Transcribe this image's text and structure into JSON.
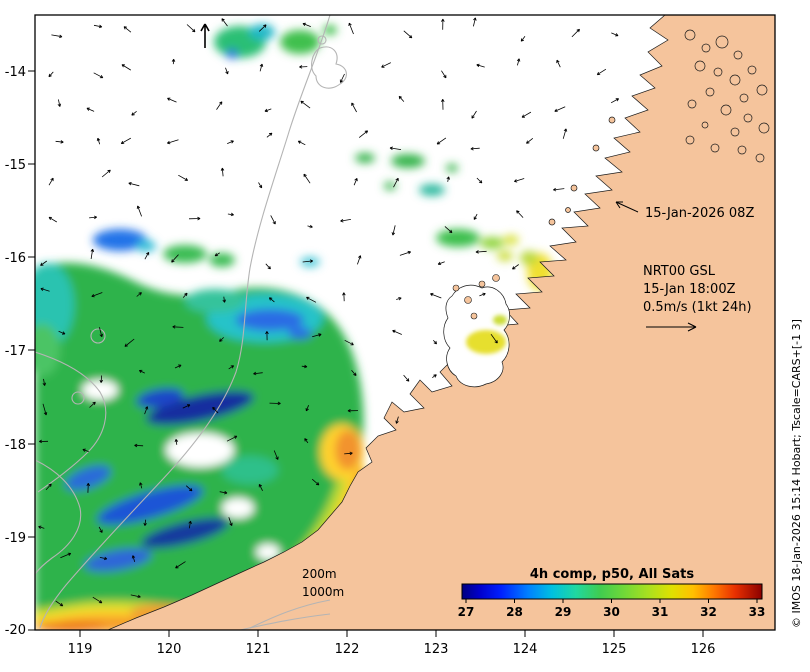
{
  "figure": {
    "obs_label": "15-Jan-2026 08Z",
    "model_name": "NRT00 GSL",
    "model_time": "15-Jan 18:00Z",
    "vector_scale_label": "0.5m/s (1kt 24h)",
    "contour_label_200": "200m",
    "contour_label_1000": "1000m",
    "credit": "© IMOS 18-Jan-2026 15:14 Hobart; Tscale=CARS+[-1 3]"
  },
  "axes": {
    "x_tick_labels": [
      "119",
      "120",
      "121",
      "122",
      "123",
      "124",
      "125",
      "126"
    ],
    "y_tick_labels": [
      "-14",
      "-15",
      "-16",
      "-17",
      "-18",
      "-19",
      "-20"
    ]
  },
  "colorbar": {
    "title": "4h comp, p50, All Sats",
    "title_color": "#00008b",
    "tick_labels": [
      "27",
      "28",
      "29",
      "30",
      "31",
      "32",
      "33"
    ],
    "gradient": [
      {
        "o": 0,
        "c": "#000080"
      },
      {
        "o": 0.06,
        "c": "#0000cd"
      },
      {
        "o": 0.13,
        "c": "#0020ff"
      },
      {
        "o": 0.22,
        "c": "#0080ff"
      },
      {
        "o": 0.3,
        "c": "#00c0e0"
      },
      {
        "o": 0.38,
        "c": "#20d8a0"
      },
      {
        "o": 0.46,
        "c": "#40cc50"
      },
      {
        "o": 0.54,
        "c": "#70d838"
      },
      {
        "o": 0.62,
        "c": "#a8e020"
      },
      {
        "o": 0.7,
        "c": "#e0e000"
      },
      {
        "o": 0.77,
        "c": "#ffc000"
      },
      {
        "o": 0.84,
        "c": "#ff7800"
      },
      {
        "o": 0.91,
        "c": "#e83000"
      },
      {
        "o": 1,
        "c": "#8b0000"
      }
    ]
  },
  "map": {
    "land_color": "#f5c49c",
    "ocean_color": "#ffffff",
    "coast_color": "#1a1a1a",
    "contour_color": "#b4b4b4",
    "vector_color": "#000000"
  },
  "chart_data": {
    "type": "heatmap",
    "title": "4h comp, p50, All Sats",
    "colorbar_ticks": [
      27,
      28,
      29,
      30,
      31,
      32,
      33
    ],
    "x_ticks": [
      119,
      120,
      121,
      122,
      123,
      124,
      125,
      126
    ],
    "y_ticks": [
      -14,
      -15,
      -16,
      -17,
      -18,
      -19,
      -20
    ],
    "x_range": [
      118.5,
      126.8
    ],
    "y_range": [
      -20.5,
      -13.35
    ],
    "overlays": [
      "wind-current vectors",
      "bathymetry contours 200m and 1000m",
      "land mask"
    ]
  }
}
